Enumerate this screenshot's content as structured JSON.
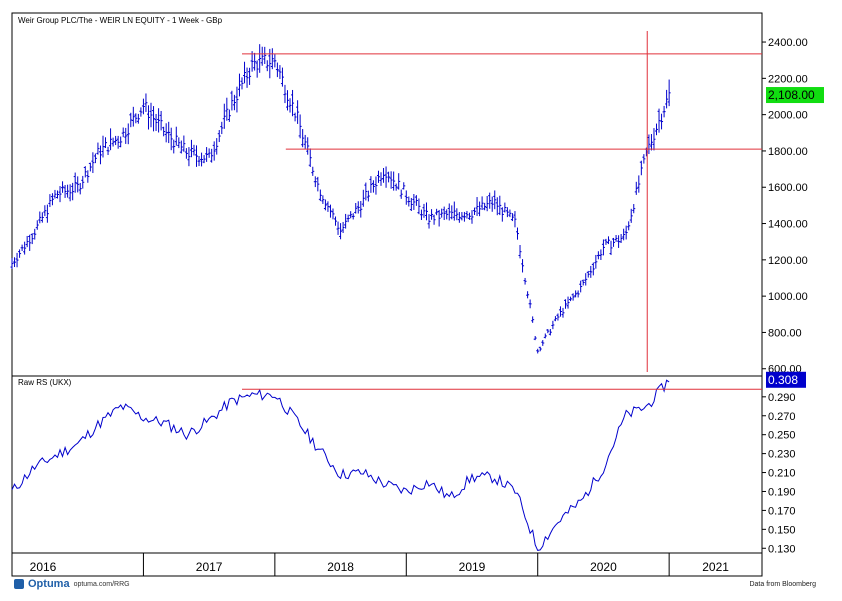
{
  "chart_data": [
    {
      "type": "line",
      "subtype": "ohlc-bars",
      "title": "Weir Group PLC/The - WEIR LN EQUITY - 1 Week - GBp",
      "ylim": [
        560,
        2560
      ],
      "y_ticks": [
        "600.00",
        "800.00",
        "1000.00",
        "1200.00",
        "1400.00",
        "1600.00",
        "1800.00",
        "2000.00",
        "2200.00",
        "2400.00"
      ],
      "last_value_label": "2,108.00",
      "last_value_color": "#11dd11",
      "series_color": "#0000cc",
      "horizontal_lines": [
        {
          "y": 2335,
          "from": "2017-10",
          "color": "#e0303a"
        },
        {
          "y": 1810,
          "from": "2018-02",
          "color": "#e0303a"
        }
      ],
      "vertical_line": {
        "x": "2020-11",
        "color": "#e0303a"
      },
      "x": [
        "2016-01",
        "2016-03",
        "2016-05",
        "2016-07",
        "2016-09",
        "2016-11",
        "2017-01",
        "2017-03",
        "2017-05",
        "2017-07",
        "2017-09",
        "2017-11",
        "2018-01",
        "2018-03",
        "2018-05",
        "2018-07",
        "2018-09",
        "2018-11",
        "2019-01",
        "2019-03",
        "2019-05",
        "2019-07",
        "2019-09",
        "2019-11",
        "2020-01",
        "2020-03",
        "2020-05",
        "2020-07",
        "2020-09",
        "2020-11",
        "2021-01"
      ],
      "values": [
        1180,
        1350,
        1560,
        1600,
        1800,
        1880,
        2050,
        1900,
        1790,
        1760,
        2050,
        2280,
        2300,
        1990,
        1600,
        1360,
        1520,
        1700,
        1560,
        1430,
        1450,
        1460,
        1520,
        1400,
        700,
        900,
        1050,
        1270,
        1330,
        1800,
        2108
      ]
    },
    {
      "type": "line",
      "title": "Raw RS (UKX)",
      "ylim": [
        0.125,
        0.312
      ],
      "y_ticks": [
        "0.130",
        "0.150",
        "0.170",
        "0.190",
        "0.210",
        "0.230",
        "0.250",
        "0.270",
        "0.290"
      ],
      "last_value_label": "0.308",
      "last_value_color": "#0000cc",
      "series_color": "#0000cc",
      "horizontal_line": {
        "y": 0.298,
        "from": "2017-10",
        "color": "#e0303a"
      },
      "x": [
        "2016-01",
        "2016-03",
        "2016-05",
        "2016-07",
        "2016-09",
        "2016-11",
        "2017-01",
        "2017-03",
        "2017-05",
        "2017-07",
        "2017-09",
        "2017-11",
        "2018-01",
        "2018-03",
        "2018-05",
        "2018-07",
        "2018-09",
        "2018-11",
        "2019-01",
        "2019-03",
        "2019-05",
        "2019-07",
        "2019-09",
        "2019-11",
        "2020-01",
        "2020-03",
        "2020-05",
        "2020-07",
        "2020-09",
        "2020-11",
        "2021-01"
      ],
      "values": [
        0.19,
        0.215,
        0.228,
        0.24,
        0.262,
        0.28,
        0.268,
        0.262,
        0.25,
        0.265,
        0.285,
        0.292,
        0.292,
        0.265,
        0.235,
        0.208,
        0.21,
        0.198,
        0.19,
        0.2,
        0.183,
        0.205,
        0.205,
        0.19,
        0.13,
        0.16,
        0.18,
        0.215,
        0.27,
        0.28,
        0.308
      ]
    }
  ],
  "x_axis": {
    "years": [
      "2016",
      "2017",
      "2018",
      "2019",
      "2020",
      "2021"
    ]
  },
  "footer": {
    "brand": "Optuma",
    "url": "optuma.com/RRG",
    "source": "Data from Bloomberg"
  }
}
